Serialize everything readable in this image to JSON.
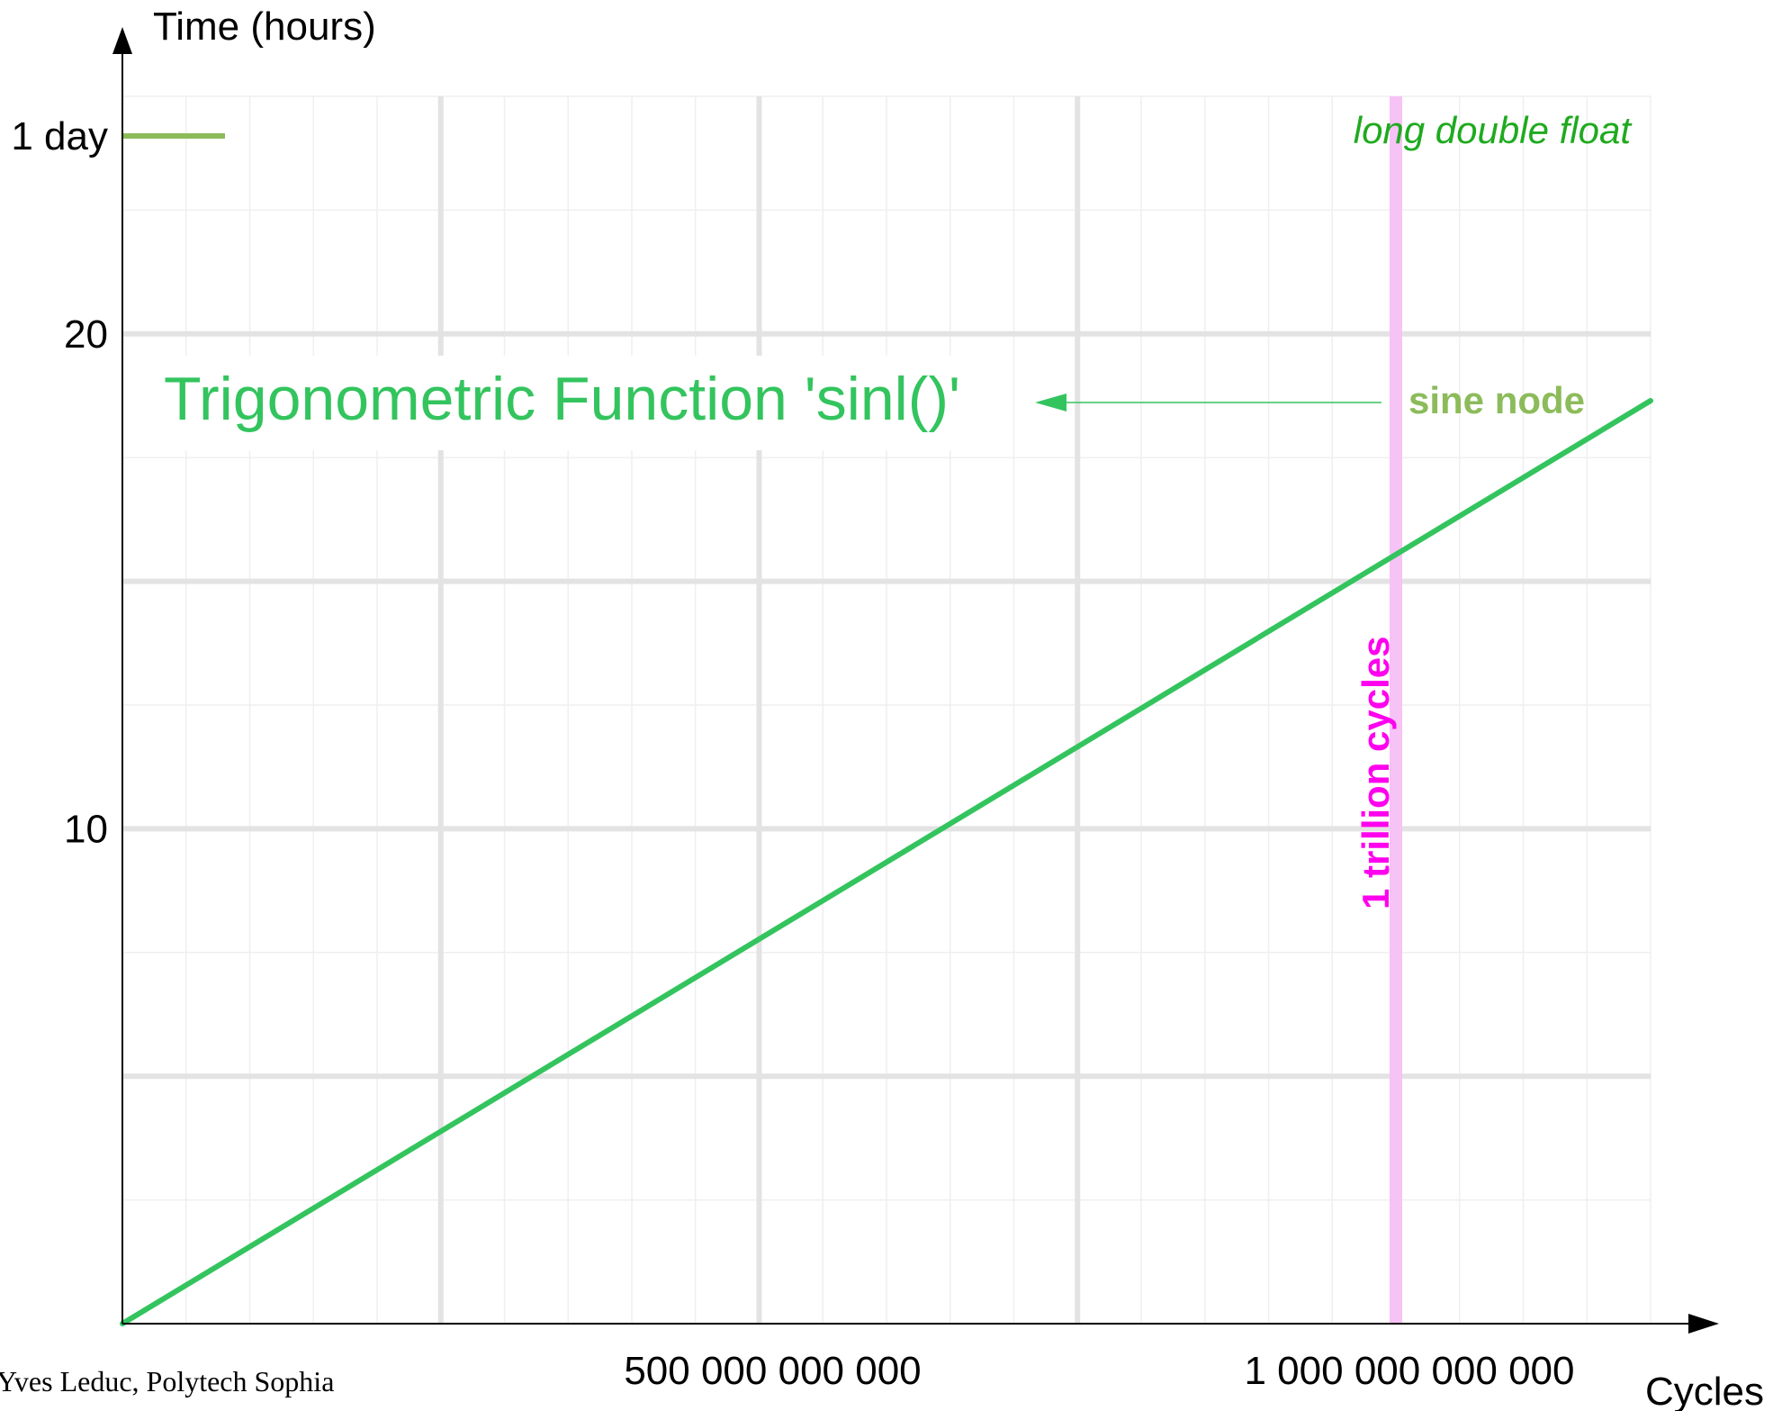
{
  "chart_data": {
    "type": "line",
    "ylabel": "Time (hours)",
    "xlabel": "Cycles",
    "x_ticks": [
      {
        "value": 500000000000,
        "label": "500 000 000 000"
      },
      {
        "value": 1000000000000,
        "label": "1 000 000 000 000"
      }
    ],
    "y_ticks": [
      {
        "value": 10,
        "label": "10"
      },
      {
        "value": 20,
        "label": "20"
      },
      {
        "value": 24,
        "label": "1 day"
      }
    ],
    "xlim": [
      0,
      1200000000000
    ],
    "ylim": [
      0,
      24.8
    ],
    "grid": true,
    "series": [
      {
        "name": "sine node",
        "color": "#33c45e",
        "x": [
          0,
          1200000000000
        ],
        "y": [
          0,
          18.65
        ]
      }
    ],
    "reference_line": {
      "x": 1000000000000,
      "label": "1 trillion cycles",
      "color": "#f7c2f5",
      "label_color": "#ff00ee"
    },
    "one_day_marker": {
      "y": 24,
      "color": "#8cbb5a"
    },
    "annotations": {
      "function_title": "Trigonometric Function 'sinl()'",
      "series_label": "sine node",
      "precision_label": "long double float"
    },
    "credit": "Yves Leduc, Polytech Sophia",
    "colors": {
      "title_green": "#33c45e",
      "sine_node_label": "#8cbb5a",
      "precision_label": "#1faa1f",
      "grid_major": "#e3e3e3",
      "grid_minor": "#efefef",
      "axis": "#000000"
    }
  }
}
